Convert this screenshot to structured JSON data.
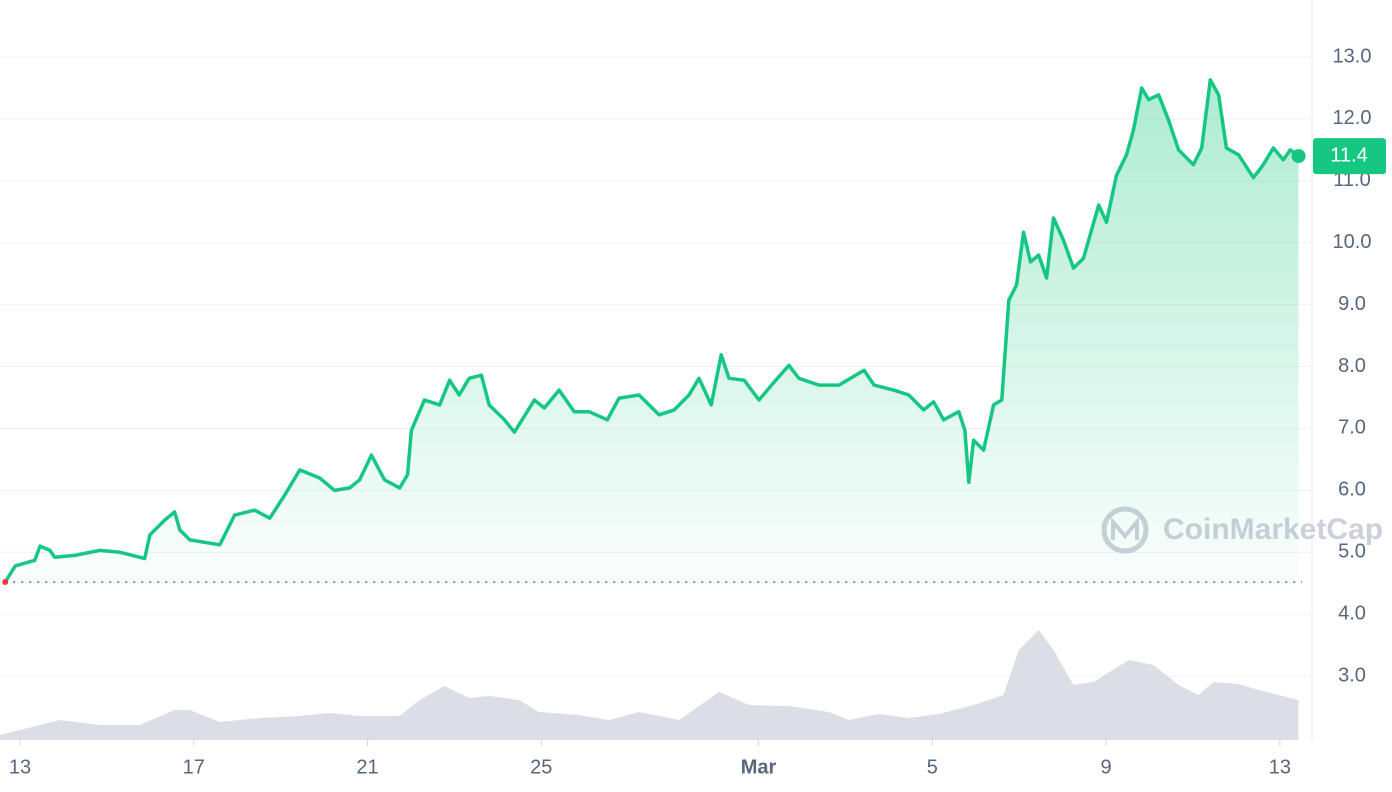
{
  "chart_data": {
    "type": "area",
    "color": "#16c784",
    "x": [
      -0.34,
      -0.11,
      0.34,
      0.46,
      0.69,
      0.8,
      1.26,
      1.84,
      2.3,
      2.87,
      2.99,
      3.33,
      3.56,
      3.68,
      3.91,
      4.6,
      4.94,
      5.4,
      5.75,
      6.09,
      6.44,
      6.9,
      7.24,
      7.59,
      7.82,
      8.09,
      8.39,
      8.74,
      8.92,
      9.01,
      9.31,
      9.66,
      9.89,
      10.11,
      10.34,
      10.62,
      10.8,
      11.15,
      11.38,
      11.84,
      12.07,
      12.41,
      12.76,
      13.1,
      13.52,
      13.79,
      14.25,
      14.71,
      15.06,
      15.4,
      15.63,
      15.91,
      16.14,
      16.32,
      16.67,
      17.01,
      17.36,
      17.7,
      17.93,
      18.39,
      18.85,
      19.43,
      19.66,
      20.11,
      20.46,
      20.8,
      21.03,
      21.26,
      21.61,
      21.75,
      21.84,
      21.95,
      22.18,
      22.41,
      22.6,
      22.76,
      22.94,
      23.1,
      23.26,
      23.45,
      23.63,
      23.79,
      24.02,
      24.25,
      24.48,
      24.83,
      25.01,
      25.24,
      25.47,
      25.63,
      25.82,
      25.98,
      26.21,
      26.44,
      26.67,
      27.01,
      27.2,
      27.4,
      27.59,
      27.77,
      28.05,
      28.39,
      28.62,
      28.85,
      29.08,
      29.24,
      29.43
    ],
    "values": [
      4.52,
      4.78,
      4.87,
      5.1,
      5.03,
      4.92,
      4.95,
      5.03,
      5.0,
      4.9,
      5.28,
      5.52,
      5.65,
      5.36,
      5.2,
      5.12,
      5.6,
      5.68,
      5.55,
      5.92,
      6.33,
      6.2,
      6.0,
      6.04,
      6.17,
      6.57,
      6.17,
      6.04,
      6.25,
      6.97,
      7.46,
      7.38,
      7.78,
      7.54,
      7.81,
      7.86,
      7.38,
      7.14,
      6.94,
      7.46,
      7.33,
      7.62,
      7.27,
      7.27,
      7.14,
      7.49,
      7.54,
      7.22,
      7.3,
      7.54,
      7.81,
      7.38,
      8.19,
      7.81,
      7.78,
      7.46,
      7.75,
      8.02,
      7.81,
      7.7,
      7.7,
      7.94,
      7.7,
      7.62,
      7.54,
      7.3,
      7.43,
      7.14,
      7.27,
      6.97,
      6.13,
      6.81,
      6.65,
      7.38,
      7.46,
      9.07,
      9.32,
      10.17,
      9.69,
      9.8,
      9.43,
      10.4,
      10.04,
      9.59,
      9.75,
      10.61,
      10.33,
      11.09,
      11.42,
      11.82,
      12.5,
      12.31,
      12.39,
      11.98,
      11.5,
      11.26,
      11.53,
      12.63,
      12.39,
      11.53,
      11.42,
      11.05,
      11.26,
      11.53,
      11.34,
      11.5,
      11.4
    ],
    "last_label": "11.4",
    "volume": {
      "x": [
        -0.46,
        0.46,
        0.92,
        1.84,
        2.76,
        3.56,
        3.91,
        4.6,
        5.52,
        6.44,
        7.13,
        7.82,
        8.74,
        9.2,
        9.77,
        10.34,
        10.8,
        11.49,
        11.95,
        12.87,
        13.56,
        14.25,
        15.17,
        16.09,
        16.78,
        17.7,
        18.62,
        19.08,
        19.77,
        20.46,
        21.15,
        21.95,
        22.64,
        22.99,
        23.45,
        23.79,
        24.25,
        24.71,
        25.52,
        26.09,
        26.67,
        27.13,
        27.47,
        28.05,
        28.51,
        29.43
      ],
      "values": [
        5,
        15,
        20,
        15,
        15,
        30,
        30,
        18,
        22,
        24,
        27,
        24,
        24,
        40,
        54,
        42,
        44,
        40,
        28,
        25,
        20,
        28,
        20,
        48,
        35,
        34,
        28,
        20,
        26,
        22,
        26,
        35,
        45,
        90,
        110,
        90,
        55,
        58,
        80,
        75,
        55,
        45,
        58,
        56,
        50,
        40
      ],
      "color": "#cfd3dc"
    },
    "vlim": [
      0,
      120
    ],
    "xlim": [
      -0.46,
      29.74
    ],
    "xticks": [
      {
        "value": 0,
        "label": "13"
      },
      {
        "value": 4,
        "label": "17"
      },
      {
        "value": 8,
        "label": "21"
      },
      {
        "value": 12,
        "label": "25"
      },
      {
        "value": 17,
        "label": "Mar"
      },
      {
        "value": 21,
        "label": "5"
      },
      {
        "value": 25,
        "label": "9"
      },
      {
        "value": 29,
        "label": "13"
      }
    ],
    "ylim": [
      2,
      13.9
    ],
    "yticks": [
      {
        "value": 3,
        "label": "3.0"
      },
      {
        "value": 4,
        "label": "4.0"
      },
      {
        "value": 5,
        "label": "5.0"
      },
      {
        "value": 6,
        "label": "6.0"
      },
      {
        "value": 7,
        "label": "7.0"
      },
      {
        "value": 8,
        "label": "8.0"
      },
      {
        "value": 9,
        "label": "9.0"
      },
      {
        "value": 10,
        "label": "10.0"
      },
      {
        "value": 11,
        "label": "11.0"
      },
      {
        "value": 12,
        "label": "12.0"
      },
      {
        "value": 13,
        "label": "13.0"
      }
    ],
    "grid": true,
    "watermark": "CoinMarketCap"
  }
}
